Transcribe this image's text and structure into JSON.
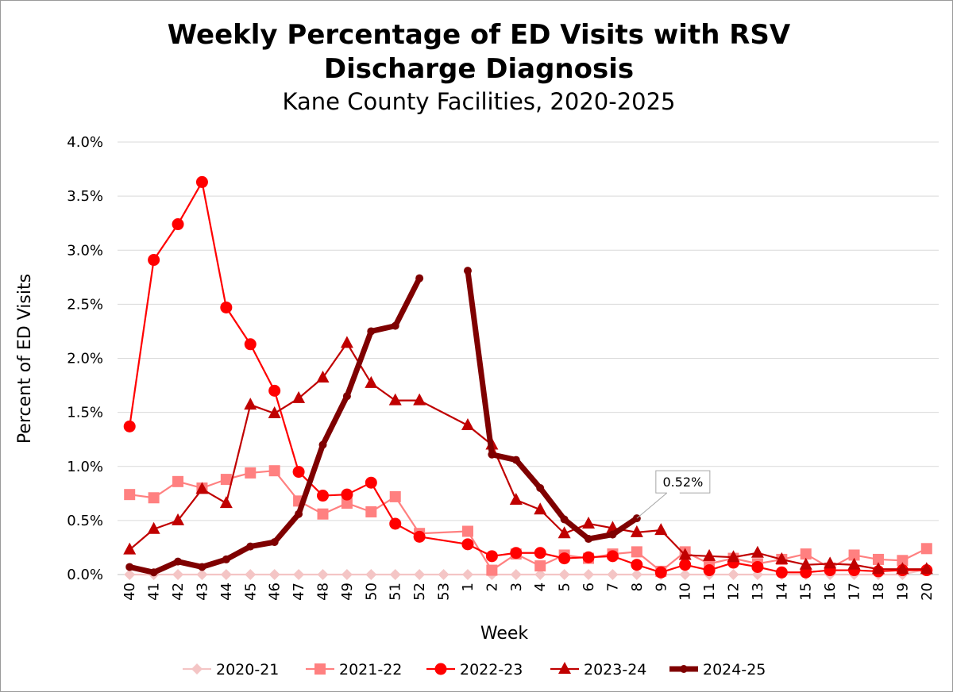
{
  "chart_data": {
    "type": "line",
    "title": [
      "Weekly Percentage of ED Visits with RSV",
      "Discharge Diagnosis"
    ],
    "subtitle": "Kane County Facilities, 2020-2025",
    "xlabel": "Week",
    "ylabel": "Percent of ED Visits",
    "ylim": [
      0,
      4.0
    ],
    "yticks": [
      0,
      0.5,
      1.0,
      1.5,
      2.0,
      2.5,
      3.0,
      3.5,
      4.0
    ],
    "ytick_labels": [
      "0.0%",
      "0.5%",
      "1.0%",
      "1.5%",
      "2.0%",
      "2.5%",
      "3.0%",
      "3.5%",
      "4.0%"
    ],
    "categories": [
      "40",
      "41",
      "42",
      "43",
      "44",
      "45",
      "46",
      "47",
      "48",
      "49",
      "50",
      "51",
      "52",
      "53",
      "1",
      "2",
      "3",
      "4",
      "5",
      "6",
      "7",
      "8",
      "9",
      "10",
      "11",
      "12",
      "13",
      "14",
      "15",
      "16",
      "17",
      "18",
      "19",
      "20"
    ],
    "grid": "horizontal",
    "legend_position": "bottom",
    "series": [
      {
        "name": "2020-21",
        "color": "#f4c5c5",
        "marker": "diamond",
        "values": [
          0,
          0,
          0,
          0,
          0,
          0,
          0,
          0,
          0,
          0,
          0,
          0,
          0,
          0,
          0,
          0,
          0,
          0,
          0,
          0,
          0,
          0,
          0,
          0,
          0,
          0,
          0,
          0,
          0,
          0,
          0,
          0,
          0,
          0.05
        ]
      },
      {
        "name": "2021-22",
        "color": "#ff8080",
        "marker": "square",
        "values": [
          0.74,
          0.71,
          0.86,
          0.8,
          0.88,
          0.94,
          0.96,
          0.68,
          0.56,
          0.66,
          0.58,
          0.72,
          0.38,
          null,
          0.4,
          0.04,
          0.19,
          0.08,
          0.18,
          0.15,
          0.19,
          0.21,
          0.03,
          0.21,
          0.1,
          0.15,
          0.1,
          0.14,
          0.19,
          0.06,
          0.18,
          0.14,
          0.13,
          0.24
        ]
      },
      {
        "name": "2022-23",
        "color": "#ff0000",
        "marker": "circle",
        "values": [
          1.37,
          2.91,
          3.24,
          3.63,
          2.47,
          2.13,
          1.7,
          0.95,
          0.73,
          0.74,
          0.85,
          0.47,
          0.35,
          null,
          0.28,
          0.17,
          0.2,
          0.2,
          0.15,
          0.16,
          0.17,
          0.09,
          0.02,
          0.09,
          0.04,
          0.11,
          0.07,
          0.02,
          0.02,
          0.04,
          0.04,
          0.03,
          0.04,
          0.04
        ]
      },
      {
        "name": "2023-24",
        "color": "#c00000",
        "marker": "triangle",
        "values": [
          0.23,
          0.42,
          0.5,
          0.79,
          0.66,
          1.57,
          1.49,
          1.63,
          1.82,
          2.14,
          1.77,
          1.61,
          1.61,
          null,
          1.38,
          1.2,
          0.69,
          0.6,
          0.38,
          0.47,
          0.43,
          0.39,
          0.41,
          0.18,
          0.17,
          0.16,
          0.2,
          0.14,
          0.09,
          0.1,
          0.09,
          0.05,
          0.05,
          0.05
        ]
      },
      {
        "name": "2024-25",
        "color": "#7f0000",
        "marker": "dot",
        "bold": true,
        "values": [
          0.07,
          0.02,
          0.12,
          0.07,
          0.14,
          0.26,
          0.3,
          0.56,
          1.2,
          1.65,
          2.25,
          2.3,
          2.74,
          null,
          2.81,
          1.11,
          1.06,
          0.8,
          0.51,
          0.33,
          0.37,
          0.52,
          null,
          null,
          null,
          null,
          null,
          null,
          null,
          null,
          null,
          null,
          null,
          null
        ]
      }
    ],
    "annotations": [
      {
        "series": "2024-25",
        "category": "8",
        "text": "0.52%"
      }
    ]
  }
}
